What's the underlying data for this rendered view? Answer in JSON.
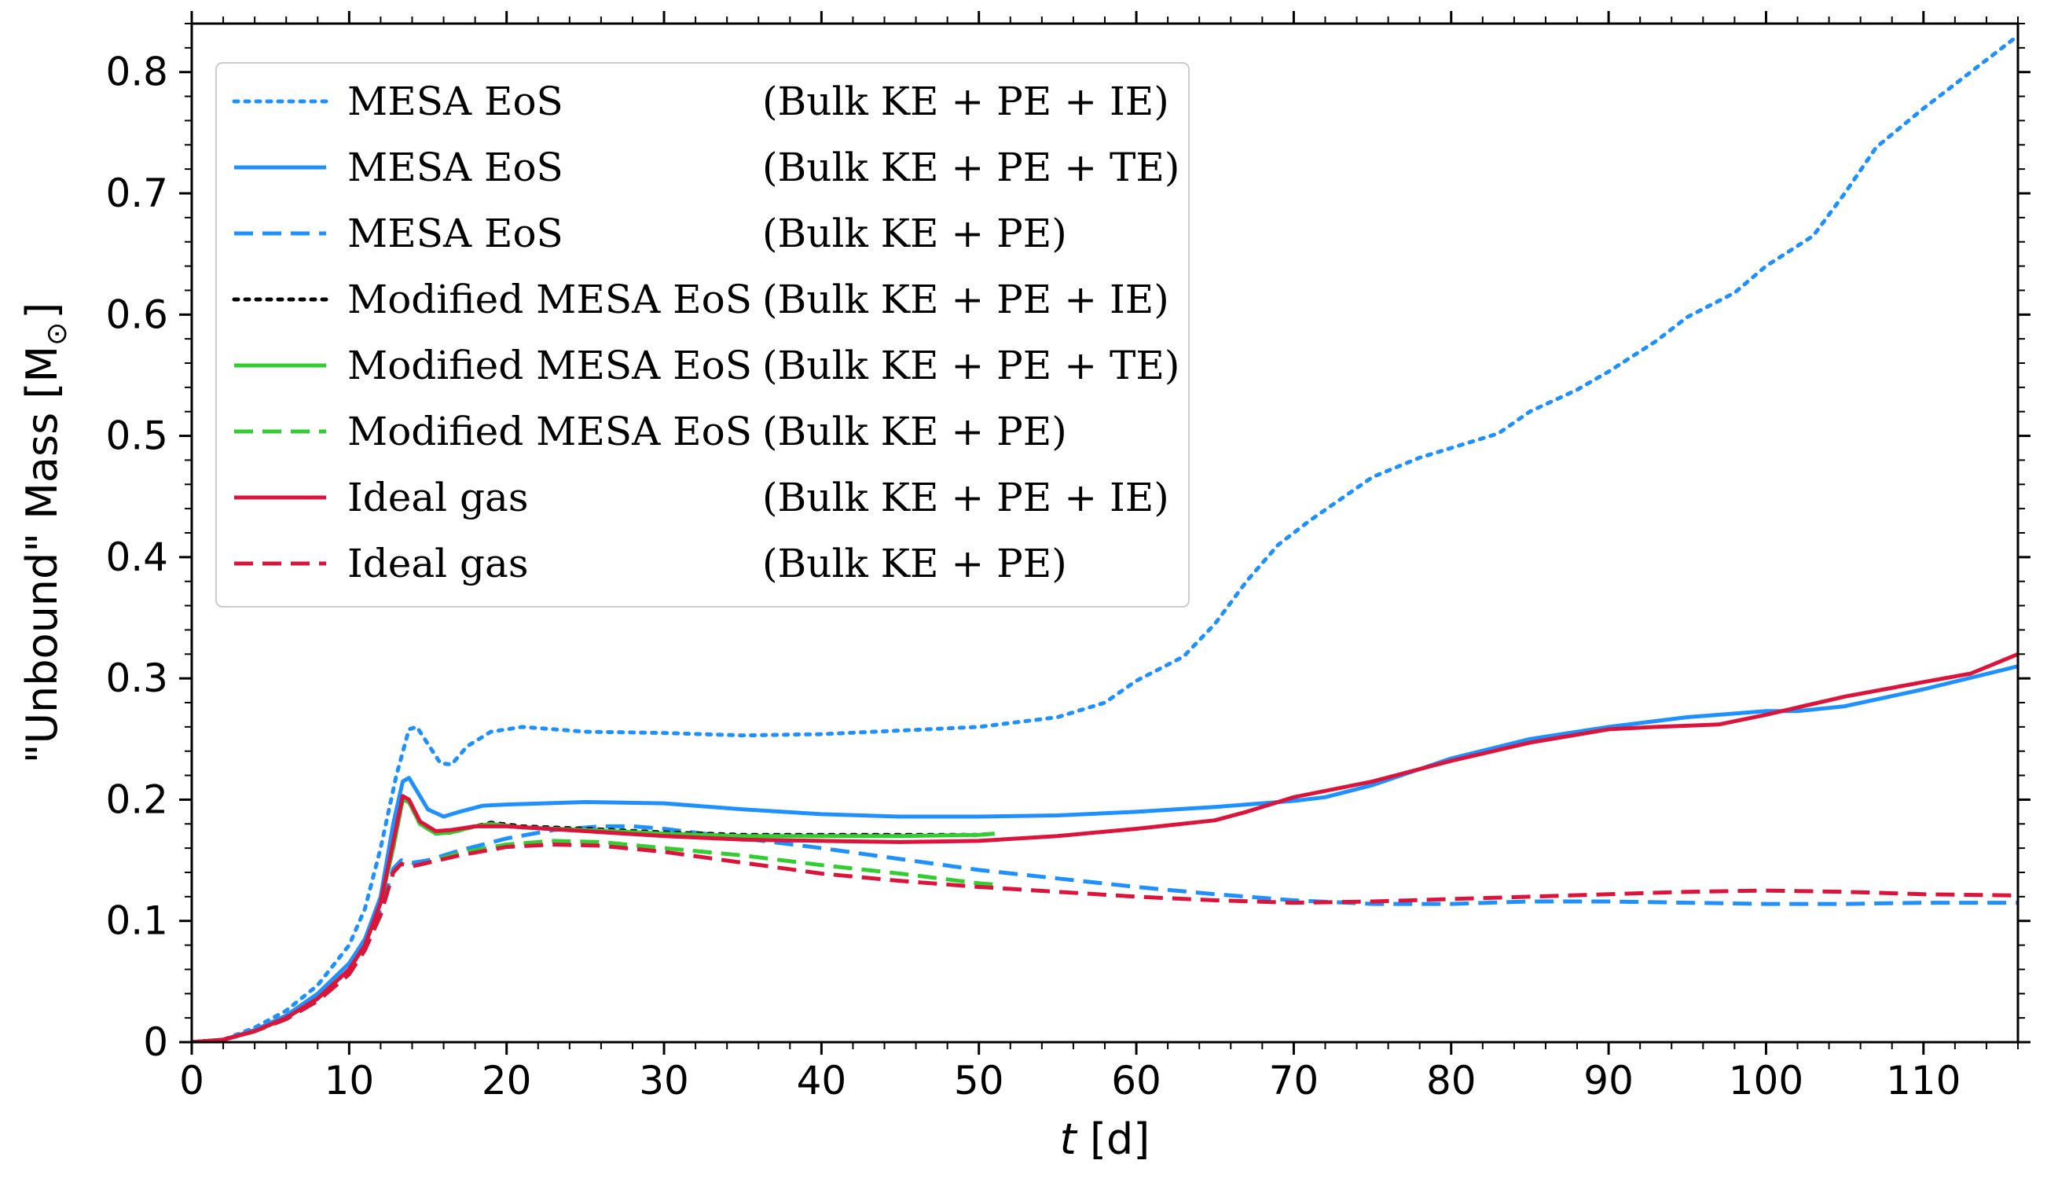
{
  "chart_data": {
    "type": "line",
    "xlabel_italic": "t",
    "xlabel_unit": " [d]",
    "ylabel_text": "\"Unbound\" Mass [M",
    "ylabel_sub": "⊙",
    "ylabel_close": "]",
    "xlim": [
      0,
      116
    ],
    "ylim": [
      0,
      0.84
    ],
    "xticks": [
      0,
      10,
      20,
      30,
      40,
      50,
      60,
      70,
      80,
      90,
      100,
      110
    ],
    "yticks": [
      0,
      0.1,
      0.2,
      0.3,
      0.4,
      0.5,
      0.6,
      0.7,
      0.8
    ],
    "ytick_labels": [
      "0",
      "0.1",
      "0.2",
      "0.3",
      "0.4",
      "0.5",
      "0.6",
      "0.7",
      "0.8"
    ],
    "legend_position": "upper-left",
    "series": [
      {
        "name": "MESA EoS",
        "energy": "(Bulk KE + PE + IE)",
        "color": "#1e90ff",
        "style": "dotted",
        "points": [
          [
            0,
            0
          ],
          [
            2,
            0.002
          ],
          [
            4,
            0.012
          ],
          [
            6,
            0.026
          ],
          [
            8,
            0.047
          ],
          [
            10,
            0.08
          ],
          [
            11,
            0.11
          ],
          [
            12,
            0.16
          ],
          [
            13,
            0.22
          ],
          [
            13.8,
            0.258
          ],
          [
            14.3,
            0.26
          ],
          [
            15,
            0.246
          ],
          [
            15.8,
            0.23
          ],
          [
            16.5,
            0.229
          ],
          [
            17.5,
            0.244
          ],
          [
            19,
            0.256
          ],
          [
            21,
            0.26
          ],
          [
            23,
            0.258
          ],
          [
            25,
            0.256
          ],
          [
            30,
            0.255
          ],
          [
            35,
            0.253
          ],
          [
            40,
            0.254
          ],
          [
            45,
            0.257
          ],
          [
            50,
            0.26
          ],
          [
            55,
            0.268
          ],
          [
            58,
            0.28
          ],
          [
            60,
            0.298
          ],
          [
            63,
            0.318
          ],
          [
            65,
            0.345
          ],
          [
            67,
            0.38
          ],
          [
            69,
            0.41
          ],
          [
            71,
            0.43
          ],
          [
            73,
            0.448
          ],
          [
            75,
            0.466
          ],
          [
            78,
            0.482
          ],
          [
            80,
            0.49
          ],
          [
            83,
            0.502
          ],
          [
            85,
            0.52
          ],
          [
            88,
            0.538
          ],
          [
            90,
            0.553
          ],
          [
            93,
            0.578
          ],
          [
            95,
            0.598
          ],
          [
            98,
            0.618
          ],
          [
            100,
            0.64
          ],
          [
            103,
            0.665
          ],
          [
            105,
            0.7
          ],
          [
            107,
            0.738
          ],
          [
            110,
            0.77
          ],
          [
            113,
            0.8
          ],
          [
            116,
            0.83
          ]
        ]
      },
      {
        "name": "MESA EoS",
        "energy": "(Bulk KE + PE + TE)",
        "color": "#1e90ff",
        "style": "solid",
        "points": [
          [
            0,
            0
          ],
          [
            2,
            0.002
          ],
          [
            4,
            0.01
          ],
          [
            6,
            0.022
          ],
          [
            8,
            0.04
          ],
          [
            10,
            0.065
          ],
          [
            11,
            0.085
          ],
          [
            12,
            0.12
          ],
          [
            12.8,
            0.18
          ],
          [
            13.4,
            0.215
          ],
          [
            13.8,
            0.218
          ],
          [
            14.4,
            0.205
          ],
          [
            15,
            0.192
          ],
          [
            16,
            0.186
          ],
          [
            17,
            0.19
          ],
          [
            18.5,
            0.195
          ],
          [
            20,
            0.196
          ],
          [
            25,
            0.198
          ],
          [
            30,
            0.197
          ],
          [
            35,
            0.192
          ],
          [
            40,
            0.188
          ],
          [
            45,
            0.186
          ],
          [
            50,
            0.186
          ],
          [
            55,
            0.187
          ],
          [
            60,
            0.19
          ],
          [
            65,
            0.194
          ],
          [
            70,
            0.199
          ],
          [
            72,
            0.202
          ],
          [
            75,
            0.212
          ],
          [
            80,
            0.234
          ],
          [
            85,
            0.25
          ],
          [
            90,
            0.26
          ],
          [
            95,
            0.268
          ],
          [
            100,
            0.273
          ],
          [
            102,
            0.273
          ],
          [
            105,
            0.277
          ],
          [
            110,
            0.291
          ],
          [
            116,
            0.31
          ]
        ]
      },
      {
        "name": "MESA EoS",
        "energy": "(Bulk KE + PE)",
        "color": "#1e90ff",
        "style": "dashed",
        "points": [
          [
            0,
            0
          ],
          [
            2,
            0.002
          ],
          [
            4,
            0.009
          ],
          [
            6,
            0.02
          ],
          [
            8,
            0.036
          ],
          [
            10,
            0.06
          ],
          [
            11,
            0.08
          ],
          [
            12,
            0.11
          ],
          [
            12.8,
            0.143
          ],
          [
            13.3,
            0.15
          ],
          [
            14,
            0.148
          ],
          [
            15,
            0.15
          ],
          [
            17,
            0.158
          ],
          [
            20,
            0.168
          ],
          [
            23,
            0.175
          ],
          [
            26,
            0.178
          ],
          [
            28,
            0.178
          ],
          [
            30,
            0.176
          ],
          [
            35,
            0.168
          ],
          [
            40,
            0.16
          ],
          [
            45,
            0.151
          ],
          [
            50,
            0.142
          ],
          [
            55,
            0.135
          ],
          [
            60,
            0.128
          ],
          [
            65,
            0.122
          ],
          [
            70,
            0.117
          ],
          [
            75,
            0.114
          ],
          [
            80,
            0.114
          ],
          [
            85,
            0.116
          ],
          [
            90,
            0.116
          ],
          [
            95,
            0.115
          ],
          [
            100,
            0.114
          ],
          [
            105,
            0.114
          ],
          [
            110,
            0.115
          ],
          [
            116,
            0.115
          ]
        ]
      },
      {
        "name": "Modified MESA EoS",
        "energy": "(Bulk KE + PE + IE)",
        "color": "#000000",
        "style": "dotted",
        "points": [
          [
            0,
            0
          ],
          [
            2,
            0.002
          ],
          [
            4,
            0.009
          ],
          [
            6,
            0.02
          ],
          [
            8,
            0.036
          ],
          [
            10,
            0.06
          ],
          [
            11,
            0.08
          ],
          [
            12,
            0.115
          ],
          [
            12.8,
            0.16
          ],
          [
            13.4,
            0.2
          ],
          [
            13.8,
            0.198
          ],
          [
            14.5,
            0.18
          ],
          [
            15.5,
            0.172
          ],
          [
            16.5,
            0.173
          ],
          [
            18,
            0.178
          ],
          [
            19,
            0.181
          ],
          [
            21,
            0.178
          ],
          [
            25,
            0.176
          ],
          [
            30,
            0.173
          ],
          [
            35,
            0.171
          ],
          [
            40,
            0.171
          ],
          [
            45,
            0.171
          ],
          [
            50,
            0.171
          ],
          [
            51,
            0.172
          ]
        ]
      },
      {
        "name": "Modified MESA EoS",
        "energy": "(Bulk KE + PE + TE)",
        "color": "#32cd32",
        "style": "solid",
        "points": [
          [
            0,
            0
          ],
          [
            2,
            0.002
          ],
          [
            4,
            0.009
          ],
          [
            6,
            0.02
          ],
          [
            8,
            0.036
          ],
          [
            10,
            0.06
          ],
          [
            11,
            0.08
          ],
          [
            12,
            0.115
          ],
          [
            12.8,
            0.16
          ],
          [
            13.4,
            0.2
          ],
          [
            13.8,
            0.198
          ],
          [
            14.5,
            0.18
          ],
          [
            15.5,
            0.172
          ],
          [
            16.5,
            0.173
          ],
          [
            18,
            0.178
          ],
          [
            19,
            0.18
          ],
          [
            21,
            0.177
          ],
          [
            25,
            0.175
          ],
          [
            30,
            0.172
          ],
          [
            35,
            0.17
          ],
          [
            40,
            0.17
          ],
          [
            45,
            0.17
          ],
          [
            50,
            0.171
          ],
          [
            51,
            0.172
          ]
        ]
      },
      {
        "name": "Modified MESA EoS",
        "energy": "(Bulk KE + PE)",
        "color": "#32cd32",
        "style": "dashed",
        "points": [
          [
            0,
            0
          ],
          [
            2,
            0.002
          ],
          [
            4,
            0.009
          ],
          [
            6,
            0.019
          ],
          [
            8,
            0.034
          ],
          [
            10,
            0.056
          ],
          [
            11,
            0.076
          ],
          [
            12,
            0.105
          ],
          [
            12.8,
            0.14
          ],
          [
            13.3,
            0.147
          ],
          [
            14,
            0.145
          ],
          [
            15,
            0.148
          ],
          [
            17,
            0.156
          ],
          [
            20,
            0.163
          ],
          [
            23,
            0.166
          ],
          [
            26,
            0.165
          ],
          [
            30,
            0.16
          ],
          [
            35,
            0.154
          ],
          [
            40,
            0.146
          ],
          [
            45,
            0.139
          ],
          [
            50,
            0.131
          ],
          [
            51,
            0.13
          ]
        ]
      },
      {
        "name": "Ideal gas",
        "energy": "(Bulk KE + PE + IE)",
        "color": "#dc143c",
        "style": "solid",
        "points": [
          [
            0,
            0
          ],
          [
            2,
            0.002
          ],
          [
            4,
            0.009
          ],
          [
            6,
            0.02
          ],
          [
            8,
            0.036
          ],
          [
            10,
            0.06
          ],
          [
            11,
            0.08
          ],
          [
            12,
            0.115
          ],
          [
            12.8,
            0.165
          ],
          [
            13.4,
            0.203
          ],
          [
            13.8,
            0.2
          ],
          [
            14.5,
            0.182
          ],
          [
            15.5,
            0.174
          ],
          [
            16.5,
            0.175
          ],
          [
            18,
            0.178
          ],
          [
            20,
            0.178
          ],
          [
            25,
            0.174
          ],
          [
            30,
            0.17
          ],
          [
            35,
            0.167
          ],
          [
            40,
            0.166
          ],
          [
            45,
            0.165
          ],
          [
            50,
            0.166
          ],
          [
            55,
            0.17
          ],
          [
            60,
            0.176
          ],
          [
            65,
            0.183
          ],
          [
            67,
            0.19
          ],
          [
            70,
            0.202
          ],
          [
            75,
            0.215
          ],
          [
            80,
            0.232
          ],
          [
            85,
            0.247
          ],
          [
            90,
            0.258
          ],
          [
            93,
            0.26
          ],
          [
            97,
            0.262
          ],
          [
            100,
            0.27
          ],
          [
            105,
            0.285
          ],
          [
            110,
            0.297
          ],
          [
            113,
            0.304
          ],
          [
            116,
            0.32
          ]
        ]
      },
      {
        "name": "Ideal gas",
        "energy": "(Bulk KE + PE)",
        "color": "#dc143c",
        "style": "dashed",
        "points": [
          [
            0,
            0
          ],
          [
            2,
            0.002
          ],
          [
            4,
            0.009
          ],
          [
            6,
            0.019
          ],
          [
            8,
            0.034
          ],
          [
            10,
            0.056
          ],
          [
            11,
            0.076
          ],
          [
            12,
            0.105
          ],
          [
            12.8,
            0.14
          ],
          [
            13.3,
            0.147
          ],
          [
            14,
            0.145
          ],
          [
            15,
            0.148
          ],
          [
            17,
            0.154
          ],
          [
            20,
            0.161
          ],
          [
            23,
            0.163
          ],
          [
            26,
            0.162
          ],
          [
            30,
            0.157
          ],
          [
            35,
            0.148
          ],
          [
            40,
            0.139
          ],
          [
            45,
            0.133
          ],
          [
            50,
            0.128
          ],
          [
            55,
            0.124
          ],
          [
            60,
            0.12
          ],
          [
            65,
            0.117
          ],
          [
            70,
            0.115
          ],
          [
            75,
            0.116
          ],
          [
            80,
            0.118
          ],
          [
            85,
            0.12
          ],
          [
            90,
            0.122
          ],
          [
            95,
            0.124
          ],
          [
            100,
            0.125
          ],
          [
            105,
            0.124
          ],
          [
            110,
            0.122
          ],
          [
            116,
            0.121
          ]
        ]
      }
    ]
  }
}
